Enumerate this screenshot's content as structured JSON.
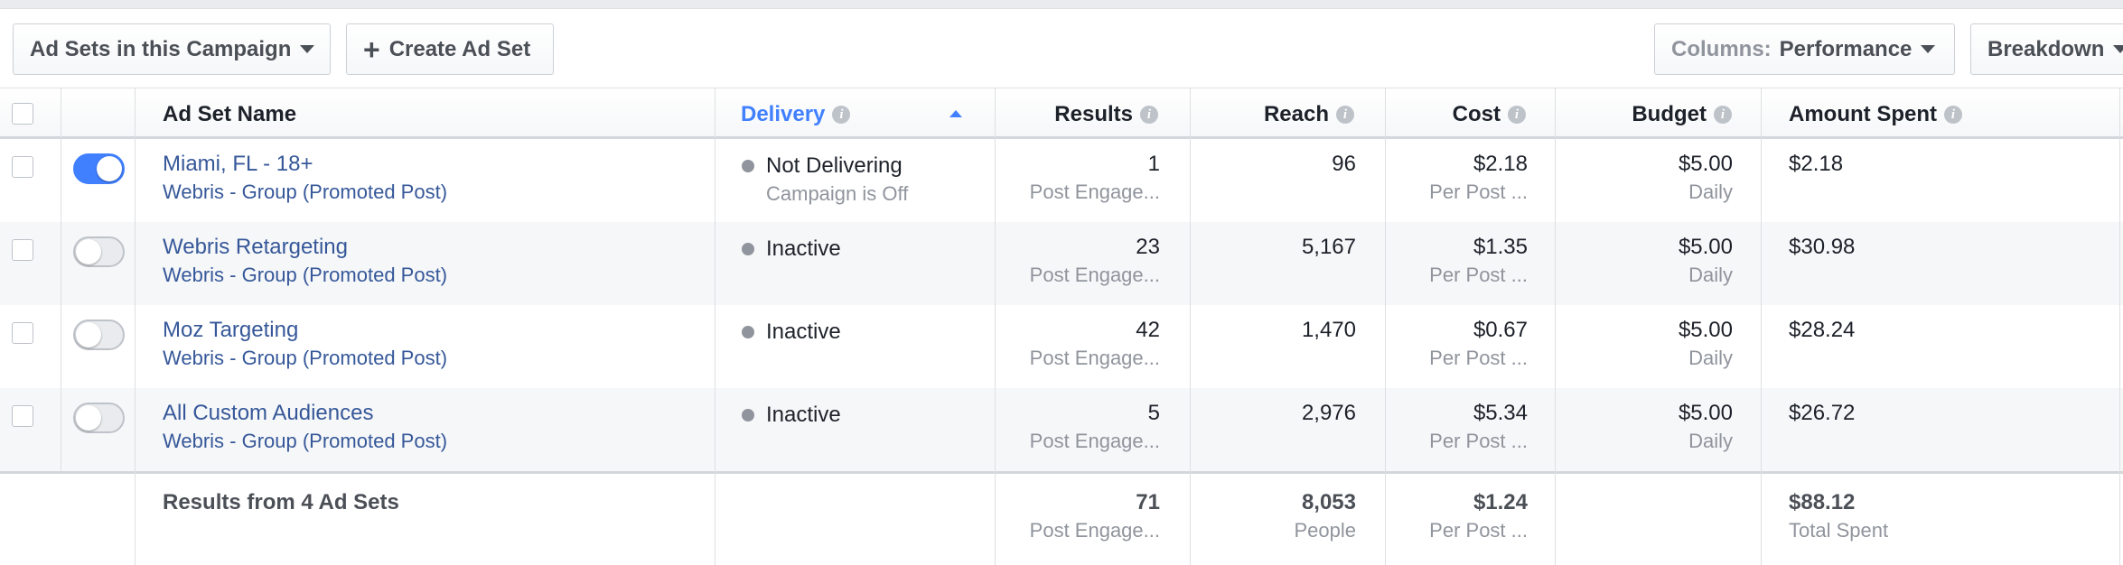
{
  "toolbar": {
    "adsets_dropdown_label": "Ad Sets in this Campaign",
    "create_label": "Create Ad Set",
    "columns_prefix": "Columns:",
    "columns_value": "Performance",
    "breakdown_label": "Breakdown"
  },
  "columns": {
    "name": "Ad Set Name",
    "delivery": "Delivery",
    "results": "Results",
    "reach": "Reach",
    "cost": "Cost",
    "budget": "Budget",
    "amount_spent": "Amount Spent"
  },
  "rows": [
    {
      "enabled": true,
      "name": "Miami, FL - 18+",
      "campaign": "Webris - Group (Promoted Post)",
      "delivery": "Not Delivering",
      "delivery_sub": "Campaign is Off",
      "results": "1",
      "results_sub": "Post Engage...",
      "reach": "96",
      "cost": "$2.18",
      "cost_sub": "Per Post ...",
      "budget": "$5.00",
      "budget_sub": "Daily",
      "amount_spent": "$2.18"
    },
    {
      "enabled": false,
      "name": "Webris Retargeting",
      "campaign": "Webris - Group (Promoted Post)",
      "delivery": "Inactive",
      "delivery_sub": "",
      "results": "23",
      "results_sub": "Post Engage...",
      "reach": "5,167",
      "cost": "$1.35",
      "cost_sub": "Per Post ...",
      "budget": "$5.00",
      "budget_sub": "Daily",
      "amount_spent": "$30.98"
    },
    {
      "enabled": false,
      "name": "Moz Targeting",
      "campaign": "Webris - Group (Promoted Post)",
      "delivery": "Inactive",
      "delivery_sub": "",
      "results": "42",
      "results_sub": "Post Engage...",
      "reach": "1,470",
      "cost": "$0.67",
      "cost_sub": "Per Post ...",
      "budget": "$5.00",
      "budget_sub": "Daily",
      "amount_spent": "$28.24"
    },
    {
      "enabled": false,
      "name": "All Custom Audiences",
      "campaign": "Webris - Group (Promoted Post)",
      "delivery": "Inactive",
      "delivery_sub": "",
      "results": "5",
      "results_sub": "Post Engage...",
      "reach": "2,976",
      "cost": "$5.34",
      "cost_sub": "Per Post ...",
      "budget": "$5.00",
      "budget_sub": "Daily",
      "amount_spent": "$26.72"
    }
  ],
  "totals": {
    "label": "Results from 4 Ad Sets",
    "results": "71",
    "results_sub": "Post Engage...",
    "reach": "8,053",
    "reach_sub": "People",
    "cost": "$1.24",
    "cost_sub": "Per Post ...",
    "amount_spent": "$88.12",
    "amount_spent_sub": "Total Spent"
  },
  "icons": {
    "info": "info-icon",
    "sort": "sort-ascending-icon",
    "caret": "caret-down-icon",
    "plus": "plus-icon"
  },
  "colors": {
    "accent": "#4080ff",
    "link": "#365899",
    "muted": "#90949c",
    "status_dot": "#90949c"
  }
}
